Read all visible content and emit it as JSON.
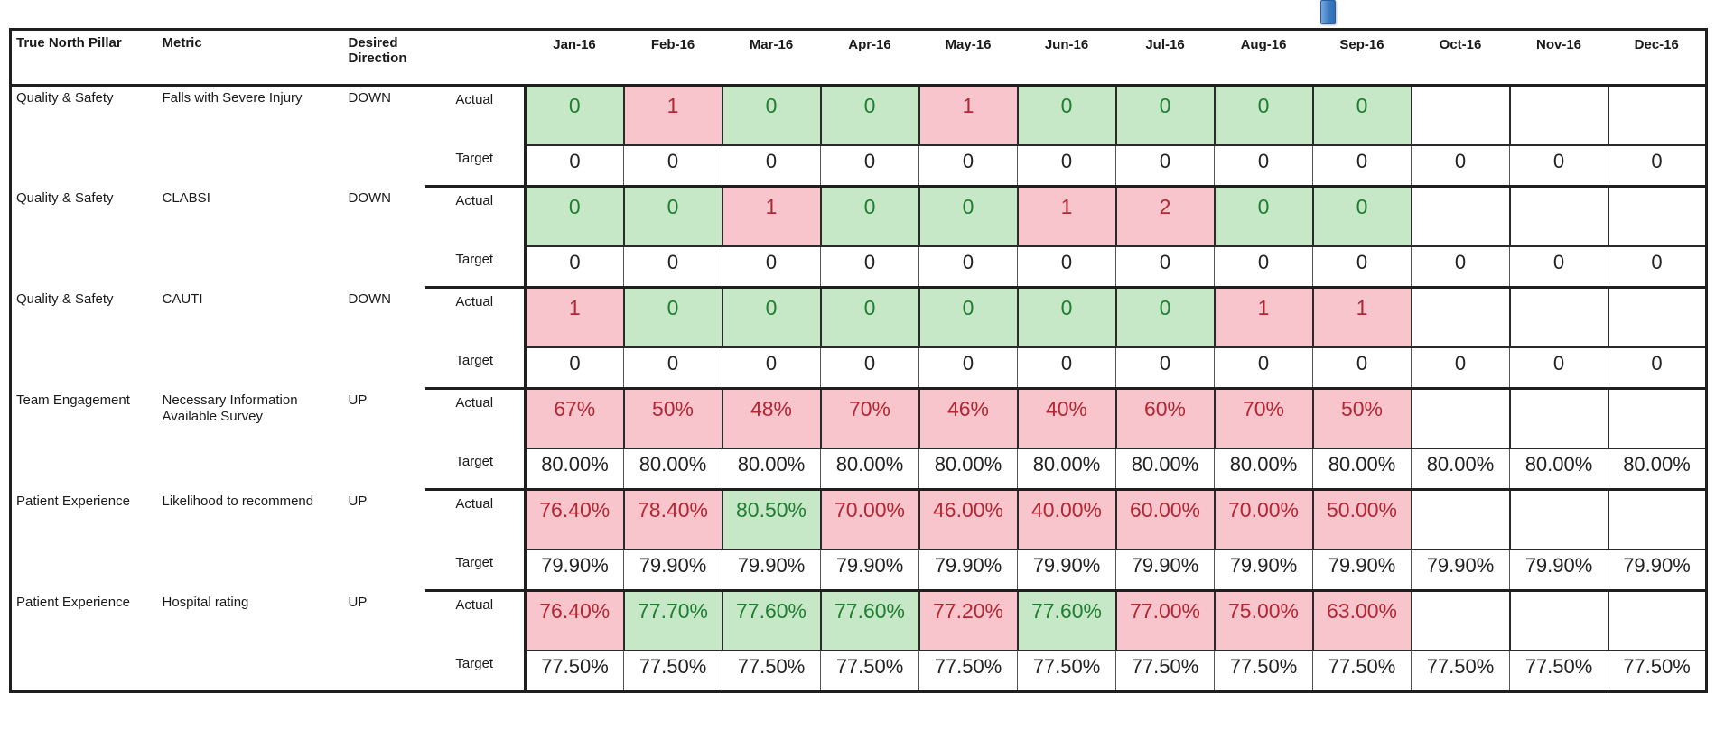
{
  "colors": {
    "good_bg": "#c6e8c7",
    "good_text": "#1f7e32",
    "bad_bg": "#f9c5cc",
    "bad_text": "#b22733",
    "border": "#1f1f1f",
    "marker_blue": "#3d7cc4"
  },
  "header": {
    "pillar": "True North Pillar",
    "metric": "Metric",
    "direction": "Desired Direction"
  },
  "months": [
    "Jan-16",
    "Feb-16",
    "Mar-16",
    "Apr-16",
    "May-16",
    "Jun-16",
    "Jul-16",
    "Aug-16",
    "Sep-16",
    "Oct-16",
    "Nov-16",
    "Dec-16"
  ],
  "row_labels": {
    "actual": "Actual",
    "target": "Target"
  },
  "metrics": [
    {
      "pillar": "Quality & Safety",
      "metric": "Falls with Severe Injury",
      "direction": "DOWN",
      "actual": [
        {
          "v": "0",
          "s": "good"
        },
        {
          "v": "1",
          "s": "bad"
        },
        {
          "v": "0",
          "s": "good"
        },
        {
          "v": "0",
          "s": "good"
        },
        {
          "v": "1",
          "s": "bad"
        },
        {
          "v": "0",
          "s": "good"
        },
        {
          "v": "0",
          "s": "good"
        },
        {
          "v": "0",
          "s": "good"
        },
        {
          "v": "0",
          "s": "good"
        },
        {
          "v": "",
          "s": "none"
        },
        {
          "v": "",
          "s": "none"
        },
        {
          "v": "",
          "s": "none"
        }
      ],
      "target": [
        "0",
        "0",
        "0",
        "0",
        "0",
        "0",
        "0",
        "0",
        "0",
        "0",
        "0",
        "0"
      ]
    },
    {
      "pillar": "Quality & Safety",
      "metric": "CLABSI",
      "direction": "DOWN",
      "actual": [
        {
          "v": "0",
          "s": "good"
        },
        {
          "v": "0",
          "s": "good"
        },
        {
          "v": "1",
          "s": "bad"
        },
        {
          "v": "0",
          "s": "good"
        },
        {
          "v": "0",
          "s": "good"
        },
        {
          "v": "1",
          "s": "bad"
        },
        {
          "v": "2",
          "s": "bad"
        },
        {
          "v": "0",
          "s": "good"
        },
        {
          "v": "0",
          "s": "good"
        },
        {
          "v": "",
          "s": "none"
        },
        {
          "v": "",
          "s": "none"
        },
        {
          "v": "",
          "s": "none"
        }
      ],
      "target": [
        "0",
        "0",
        "0",
        "0",
        "0",
        "0",
        "0",
        "0",
        "0",
        "0",
        "0",
        "0"
      ]
    },
    {
      "pillar": "Quality & Safety",
      "metric": "CAUTI",
      "direction": "DOWN",
      "actual": [
        {
          "v": "1",
          "s": "bad"
        },
        {
          "v": "0",
          "s": "good"
        },
        {
          "v": "0",
          "s": "good"
        },
        {
          "v": "0",
          "s": "good"
        },
        {
          "v": "0",
          "s": "good"
        },
        {
          "v": "0",
          "s": "good"
        },
        {
          "v": "0",
          "s": "good"
        },
        {
          "v": "1",
          "s": "bad"
        },
        {
          "v": "1",
          "s": "bad"
        },
        {
          "v": "",
          "s": "none"
        },
        {
          "v": "",
          "s": "none"
        },
        {
          "v": "",
          "s": "none"
        }
      ],
      "target": [
        "0",
        "0",
        "0",
        "0",
        "0",
        "0",
        "0",
        "0",
        "0",
        "0",
        "0",
        "0"
      ]
    },
    {
      "pillar": "Team Engagement",
      "metric": "Necessary Information Available Survey",
      "direction": "UP",
      "actual": [
        {
          "v": "67%",
          "s": "bad"
        },
        {
          "v": "50%",
          "s": "bad"
        },
        {
          "v": "48%",
          "s": "bad"
        },
        {
          "v": "70%",
          "s": "bad"
        },
        {
          "v": "46%",
          "s": "bad"
        },
        {
          "v": "40%",
          "s": "bad"
        },
        {
          "v": "60%",
          "s": "bad"
        },
        {
          "v": "70%",
          "s": "bad"
        },
        {
          "v": "50%",
          "s": "bad"
        },
        {
          "v": "",
          "s": "none"
        },
        {
          "v": "",
          "s": "none"
        },
        {
          "v": "",
          "s": "none"
        }
      ],
      "target": [
        "80.00%",
        "80.00%",
        "80.00%",
        "80.00%",
        "80.00%",
        "80.00%",
        "80.00%",
        "80.00%",
        "80.00%",
        "80.00%",
        "80.00%",
        "80.00%"
      ]
    },
    {
      "pillar": "Patient Experience",
      "metric": "Likelihood to recommend",
      "direction": "UP",
      "actual": [
        {
          "v": "76.40%",
          "s": "bad"
        },
        {
          "v": "78.40%",
          "s": "bad"
        },
        {
          "v": "80.50%",
          "s": "good"
        },
        {
          "v": "70.00%",
          "s": "bad"
        },
        {
          "v": "46.00%",
          "s": "bad"
        },
        {
          "v": "40.00%",
          "s": "bad"
        },
        {
          "v": "60.00%",
          "s": "bad"
        },
        {
          "v": "70.00%",
          "s": "bad"
        },
        {
          "v": "50.00%",
          "s": "bad"
        },
        {
          "v": "",
          "s": "none"
        },
        {
          "v": "",
          "s": "none"
        },
        {
          "v": "",
          "s": "none"
        }
      ],
      "target": [
        "79.90%",
        "79.90%",
        "79.90%",
        "79.90%",
        "79.90%",
        "79.90%",
        "79.90%",
        "79.90%",
        "79.90%",
        "79.90%",
        "79.90%",
        "79.90%"
      ]
    },
    {
      "pillar": "Patient Experience",
      "metric": "Hospital rating",
      "direction": "UP",
      "actual": [
        {
          "v": "76.40%",
          "s": "bad"
        },
        {
          "v": "77.70%",
          "s": "good"
        },
        {
          "v": "77.60%",
          "s": "good"
        },
        {
          "v": "77.60%",
          "s": "good"
        },
        {
          "v": "77.20%",
          "s": "bad"
        },
        {
          "v": "77.60%",
          "s": "good"
        },
        {
          "v": "77.00%",
          "s": "bad"
        },
        {
          "v": "75.00%",
          "s": "bad"
        },
        {
          "v": "63.00%",
          "s": "bad"
        },
        {
          "v": "",
          "s": "none"
        },
        {
          "v": "",
          "s": "none"
        },
        {
          "v": "",
          "s": "none"
        }
      ],
      "target": [
        "77.50%",
        "77.50%",
        "77.50%",
        "77.50%",
        "77.50%",
        "77.50%",
        "77.50%",
        "77.50%",
        "77.50%",
        "77.50%",
        "77.50%",
        "77.50%"
      ]
    }
  ]
}
